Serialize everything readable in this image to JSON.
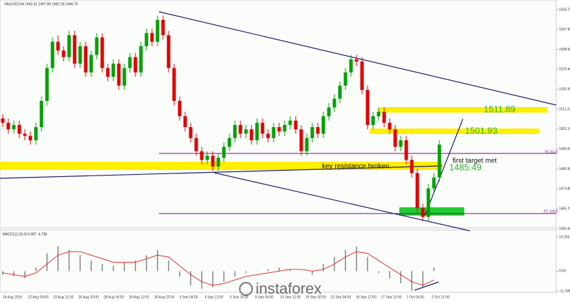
{
  "chart_data": {
    "type": "candlestick",
    "title": "XAUUSD,H4 1492.41 1497.89 1492.18 1494.70",
    "annotations": [
      "1511.89",
      "1501.93",
      "1485.49",
      "key resistance broken",
      "first target met",
      "FC 61.8",
      "FC 100.0"
    ],
    "watermark": "instaforex",
    "up_color": "#00a000",
    "down_color": "#e00000",
    "ylim": [
      1456.9,
      1561.1
    ],
    "yticks": [
      {
        "value": 1556.7,
        "label": "1556.70"
      },
      {
        "value": 1547.6,
        "label": "1547.60"
      },
      {
        "value": 1538.5,
        "label": "1538.50"
      },
      {
        "value": 1529.4,
        "label": "1529.40"
      },
      {
        "value": 1520.3,
        "label": "1520.30"
      },
      {
        "value": 1511.2,
        "label": "1511.20"
      },
      {
        "value": 1502.1,
        "label": "1502.10"
      },
      {
        "value": 1493,
        "label": "1493.00"
      },
      {
        "value": 1483.9,
        "label": "1483.90"
      },
      {
        "value": 1474.8,
        "label": "1474.80"
      },
      {
        "value": 1465.7,
        "label": "1465.70"
      },
      {
        "value": 1456.6,
        "label": "1456.60"
      }
    ],
    "x_labels": [
      "16 Aug 2019",
      "22 Aug 04:00",
      "23 Aug 12:00",
      "26 Aug 20:00",
      "28 Aug 04:00",
      "29 Aug 12:00",
      "30 Aug 20:00",
      "3 Sep 04:00",
      "4 Sep 12:00",
      "5 Sep 20:00",
      "9 Sep 04:00",
      "10 Sep 12:00",
      "19 Sep 20:00",
      "23 Sep 04:00",
      "26 Sep 12:00",
      "27 Sep 12:00",
      "1 Oct 04:00",
      "2 Oct 12:00"
    ],
    "candles": [
      [
        1507,
        1509,
        1503,
        1505
      ],
      [
        1505,
        1507,
        1500,
        1502
      ],
      [
        1502,
        1506,
        1500,
        1504
      ],
      [
        1504,
        1506,
        1498,
        1500
      ],
      [
        1500,
        1502,
        1497,
        1499
      ],
      [
        1499,
        1501,
        1495,
        1497
      ],
      [
        1497,
        1505,
        1495,
        1503
      ],
      [
        1503,
        1517,
        1501,
        1515
      ],
      [
        1515,
        1532,
        1513,
        1530
      ],
      [
        1530,
        1544,
        1528,
        1542
      ],
      [
        1542,
        1545,
        1536,
        1538
      ],
      [
        1538,
        1540,
        1533,
        1535
      ],
      [
        1535,
        1547,
        1533,
        1545
      ],
      [
        1545,
        1547,
        1530,
        1532
      ],
      [
        1532,
        1542,
        1530,
        1540
      ],
      [
        1540,
        1542,
        1526,
        1528
      ],
      [
        1528,
        1538,
        1526,
        1536
      ],
      [
        1536,
        1546,
        1534,
        1544
      ],
      [
        1544,
        1546,
        1528,
        1530
      ],
      [
        1530,
        1532,
        1524,
        1526
      ],
      [
        1526,
        1534,
        1524,
        1532
      ],
      [
        1532,
        1534,
        1520,
        1522
      ],
      [
        1522,
        1532,
        1520,
        1530
      ],
      [
        1530,
        1537,
        1528,
        1535
      ],
      [
        1535,
        1537,
        1526,
        1528
      ],
      [
        1528,
        1542,
        1526,
        1540
      ],
      [
        1540,
        1548,
        1538,
        1546
      ],
      [
        1546,
        1548,
        1540,
        1542
      ],
      [
        1542,
        1554,
        1540,
        1552
      ],
      [
        1552,
        1554,
        1543,
        1545
      ],
      [
        1545,
        1547,
        1528,
        1530
      ],
      [
        1530,
        1532,
        1513,
        1515
      ],
      [
        1515,
        1517,
        1506,
        1508
      ],
      [
        1508,
        1510,
        1501,
        1503
      ],
      [
        1503,
        1505,
        1496,
        1498
      ],
      [
        1498,
        1500,
        1490,
        1492
      ],
      [
        1492,
        1494,
        1486,
        1488
      ],
      [
        1488,
        1492,
        1486,
        1490
      ],
      [
        1490,
        1492,
        1483,
        1485
      ],
      [
        1485,
        1491,
        1483,
        1489
      ],
      [
        1489,
        1496,
        1487,
        1494
      ],
      [
        1494,
        1500,
        1492,
        1498
      ],
      [
        1498,
        1506,
        1496,
        1504
      ],
      [
        1504,
        1506,
        1498,
        1500
      ],
      [
        1500,
        1504,
        1498,
        1502
      ],
      [
        1502,
        1504,
        1495,
        1497
      ],
      [
        1497,
        1507,
        1495,
        1505
      ],
      [
        1505,
        1507,
        1498,
        1500
      ],
      [
        1500,
        1502,
        1496,
        1498
      ],
      [
        1498,
        1505,
        1496,
        1503
      ],
      [
        1503,
        1505,
        1499,
        1501
      ],
      [
        1501,
        1506,
        1499,
        1504
      ],
      [
        1504,
        1508,
        1502,
        1506
      ],
      [
        1506,
        1508,
        1500,
        1502
      ],
      [
        1502,
        1504,
        1490,
        1492
      ],
      [
        1492,
        1500,
        1490,
        1498
      ],
      [
        1498,
        1505,
        1496,
        1503
      ],
      [
        1503,
        1505,
        1498,
        1500
      ],
      [
        1500,
        1510,
        1498,
        1508
      ],
      [
        1508,
        1514,
        1506,
        1512
      ],
      [
        1512,
        1518,
        1510,
        1516
      ],
      [
        1516,
        1524,
        1514,
        1522
      ],
      [
        1522,
        1530,
        1520,
        1528
      ],
      [
        1528,
        1536,
        1526,
        1534
      ],
      [
        1534,
        1536,
        1531,
        1533
      ],
      [
        1533,
        1535,
        1518,
        1520
      ],
      [
        1520,
        1522,
        1502,
        1504
      ],
      [
        1504,
        1510,
        1502,
        1508
      ],
      [
        1508,
        1512,
        1506,
        1510
      ],
      [
        1510,
        1512,
        1503,
        1505
      ],
      [
        1505,
        1507,
        1500,
        1502
      ],
      [
        1502,
        1504,
        1492,
        1494
      ],
      [
        1494,
        1499,
        1492,
        1497
      ],
      [
        1497,
        1499,
        1486,
        1488
      ],
      [
        1488,
        1490,
        1480,
        1482
      ],
      [
        1482,
        1484,
        1464,
        1466
      ],
      [
        1466,
        1468,
        1460,
        1462
      ],
      [
        1462,
        1477,
        1460,
        1475
      ],
      [
        1475,
        1482,
        1473,
        1480
      ],
      [
        1480,
        1497,
        1478,
        1495
      ]
    ],
    "macd": {
      "title": "MACD(12,26,9) 6.987 -4.736",
      "ylim": [
        -11.184,
        19.256
      ],
      "yticks": [
        {
          "value": 19.256,
          "label": "19.256"
        },
        {
          "value": 0,
          "label": "0.00"
        },
        {
          "value": -11.184,
          "label": "-11.184"
        }
      ],
      "histogram_color": "#a0a0a0",
      "signal_color": "#e03030",
      "histogram": [
        -2,
        -3,
        -4,
        2,
        10,
        14,
        12,
        9,
        6,
        4,
        3,
        5,
        6,
        9,
        12,
        6,
        -3,
        -8,
        -10,
        -9,
        -6,
        -3,
        -1,
        0,
        1,
        2,
        1,
        0,
        -2,
        4,
        8,
        12,
        14,
        8,
        -1,
        -4,
        -7,
        -11,
        -9,
        2
      ],
      "signal": [
        -1,
        -2,
        -3,
        -1,
        4,
        9,
        11,
        11,
        9,
        7,
        5,
        5,
        5,
        7,
        9,
        8,
        3,
        -2,
        -6,
        -8,
        -7,
        -5,
        -3,
        -2,
        -1,
        0,
        1,
        1,
        0,
        1,
        4,
        8,
        11,
        10,
        6,
        2,
        -2,
        -6,
        -8,
        -5
      ]
    }
  }
}
